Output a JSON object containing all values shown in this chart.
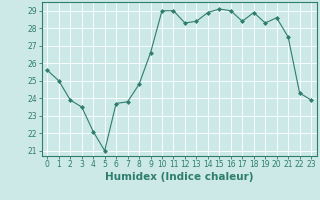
{
  "x": [
    0,
    1,
    2,
    3,
    4,
    5,
    6,
    7,
    8,
    9,
    10,
    11,
    12,
    13,
    14,
    15,
    16,
    17,
    18,
    19,
    20,
    21,
    22,
    23
  ],
  "y": [
    25.6,
    25.0,
    23.9,
    23.5,
    22.1,
    21.0,
    23.7,
    23.8,
    24.8,
    26.6,
    29.0,
    29.0,
    28.3,
    28.4,
    28.9,
    29.1,
    29.0,
    28.4,
    28.9,
    28.3,
    28.6,
    27.5,
    24.3,
    23.9
  ],
  "line_color": "#2e7d6e",
  "marker": "D",
  "marker_size": 2.0,
  "bg_color": "#cce9e7",
  "grid_color": "#ffffff",
  "xlabel": "Humidex (Indice chaleur)",
  "xlim": [
    -0.5,
    23.5
  ],
  "ylim": [
    20.7,
    29.5
  ],
  "yticks": [
    21,
    22,
    23,
    24,
    25,
    26,
    27,
    28,
    29
  ],
  "xticks": [
    0,
    1,
    2,
    3,
    4,
    5,
    6,
    7,
    8,
    9,
    10,
    11,
    12,
    13,
    14,
    15,
    16,
    17,
    18,
    19,
    20,
    21,
    22,
    23
  ],
  "tick_color": "#2e7d6e",
  "label_color": "#2e7d6e",
  "axis_color": "#2e7d6e",
  "fontsize_ticks": 5.5,
  "fontsize_label": 7.5
}
